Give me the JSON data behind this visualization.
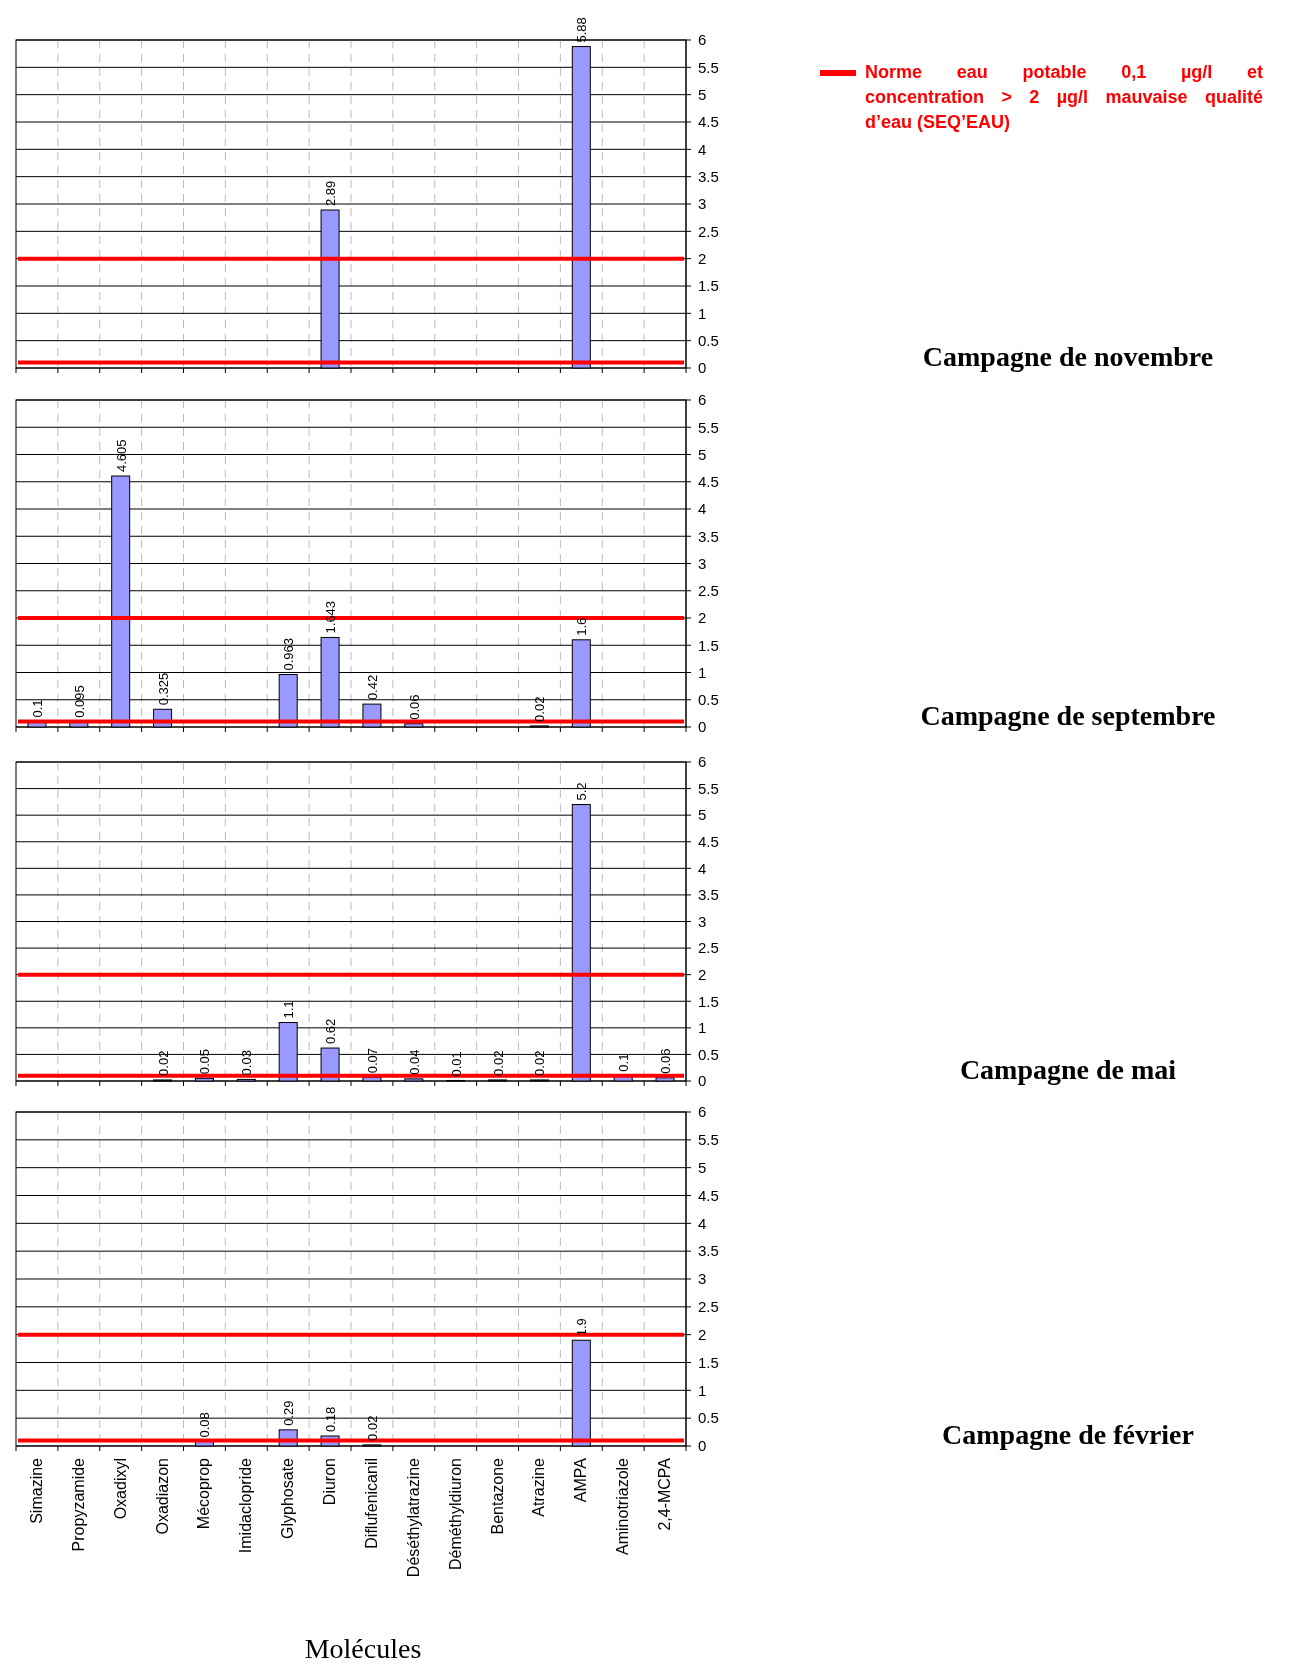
{
  "chart_data": [
    {
      "type": "bar",
      "annotations": [
        "Campagne de novembre"
      ],
      "categories": [
        null,
        null,
        null,
        null,
        null,
        null,
        null,
        null,
        null,
        null,
        null,
        null,
        null,
        null,
        null,
        null
      ],
      "values": [
        null,
        null,
        null,
        null,
        null,
        null,
        null,
        2.89,
        null,
        null,
        null,
        null,
        null,
        5.88,
        null,
        null
      ],
      "color": "#9999ff",
      "ylim": [
        0,
        6
      ],
      "yticks": [
        0,
        0.5,
        1,
        1.5,
        2,
        2.5,
        3,
        3.5,
        4,
        4.5,
        5,
        5.5,
        6
      ],
      "grid": true,
      "data_labels": true,
      "tick_labels": "y",
      "ref_lines": [
        {
          "axis": "y",
          "value": 0.1,
          "label": "Norme eau potable 0,1 µg/l et concentration > 2 µg/l  mauvaise qualité d’eau (SEQ’EAU)",
          "color": "#ff0000"
        },
        {
          "axis": "y",
          "value": 2,
          "color": "#ff0000"
        }
      ]
    },
    {
      "type": "bar",
      "annotations": [
        "Campagne de septembre"
      ],
      "categories": [
        null,
        null,
        null,
        null,
        null,
        null,
        null,
        null,
        null,
        null,
        null,
        null,
        null,
        null,
        null,
        null
      ],
      "values": [
        0.1,
        0.095,
        4.605,
        0.325,
        null,
        null,
        0.963,
        1.643,
        0.42,
        0.06,
        null,
        null,
        0.02,
        1.6,
        null,
        null
      ],
      "color": "#9999ff",
      "ylim": [
        0,
        6
      ],
      "yticks": [
        0,
        0.5,
        1,
        1.5,
        2,
        2.5,
        3,
        3.5,
        4,
        4.5,
        5,
        5.5,
        6
      ],
      "grid": true,
      "data_labels": true,
      "tick_labels": "y",
      "ref_lines": [
        {
          "axis": "y",
          "value": 0.1,
          "color": "#ff0000"
        },
        {
          "axis": "y",
          "value": 2,
          "color": "#ff0000"
        }
      ]
    },
    {
      "type": "bar",
      "annotations": [
        "Campagne de mai"
      ],
      "categories": [
        null,
        null,
        null,
        null,
        null,
        null,
        null,
        null,
        null,
        null,
        null,
        null,
        null,
        null,
        null,
        null
      ],
      "values": [
        null,
        null,
        null,
        0.02,
        0.05,
        0.03,
        1.1,
        0.62,
        0.07,
        0.04,
        0.01,
        0.02,
        0.02,
        5.2,
        0.1,
        0.06
      ],
      "color": "#9999ff",
      "ylim": [
        0,
        6
      ],
      "yticks": [
        0,
        0.5,
        1,
        1.5,
        2,
        2.5,
        3,
        3.5,
        4,
        4.5,
        5,
        5.5,
        6
      ],
      "grid": true,
      "data_labels": true,
      "tick_labels": "y",
      "ref_lines": [
        {
          "axis": "y",
          "value": 0.1,
          "color": "#ff0000"
        },
        {
          "axis": "y",
          "value": 2,
          "color": "#ff0000"
        }
      ]
    },
    {
      "type": "bar",
      "annotations": [
        "Campagne de février"
      ],
      "xlabel": "Molécules",
      "categories": [
        "Simazine",
        "Propyzamide",
        "Oxadixyl",
        "Oxadiazon",
        "Mécoprop",
        "Imidaclopride",
        "Glyphosate",
        "Diuron",
        "Diflufenicanil",
        "Déséthylatrazine",
        "Déméthyldiuron",
        "Bentazone",
        "Atrazine",
        "AMPA",
        "Aminotriazole",
        "2,4-MCPA"
      ],
      "values": [
        null,
        null,
        null,
        null,
        0.08,
        null,
        0.29,
        0.18,
        0.02,
        null,
        null,
        null,
        null,
        1.9,
        null,
        null
      ],
      "color": "#9999ff",
      "ylim": [
        0,
        6
      ],
      "yticks": [
        0,
        0.5,
        1,
        1.5,
        2,
        2.5,
        3,
        3.5,
        4,
        4.5,
        5,
        5.5,
        6
      ],
      "grid": true,
      "data_labels": true,
      "ref_lines": [
        {
          "axis": "y",
          "value": 0.1,
          "color": "#ff0000"
        },
        {
          "axis": "y",
          "value": 2,
          "color": "#ff0000"
        }
      ]
    }
  ]
}
